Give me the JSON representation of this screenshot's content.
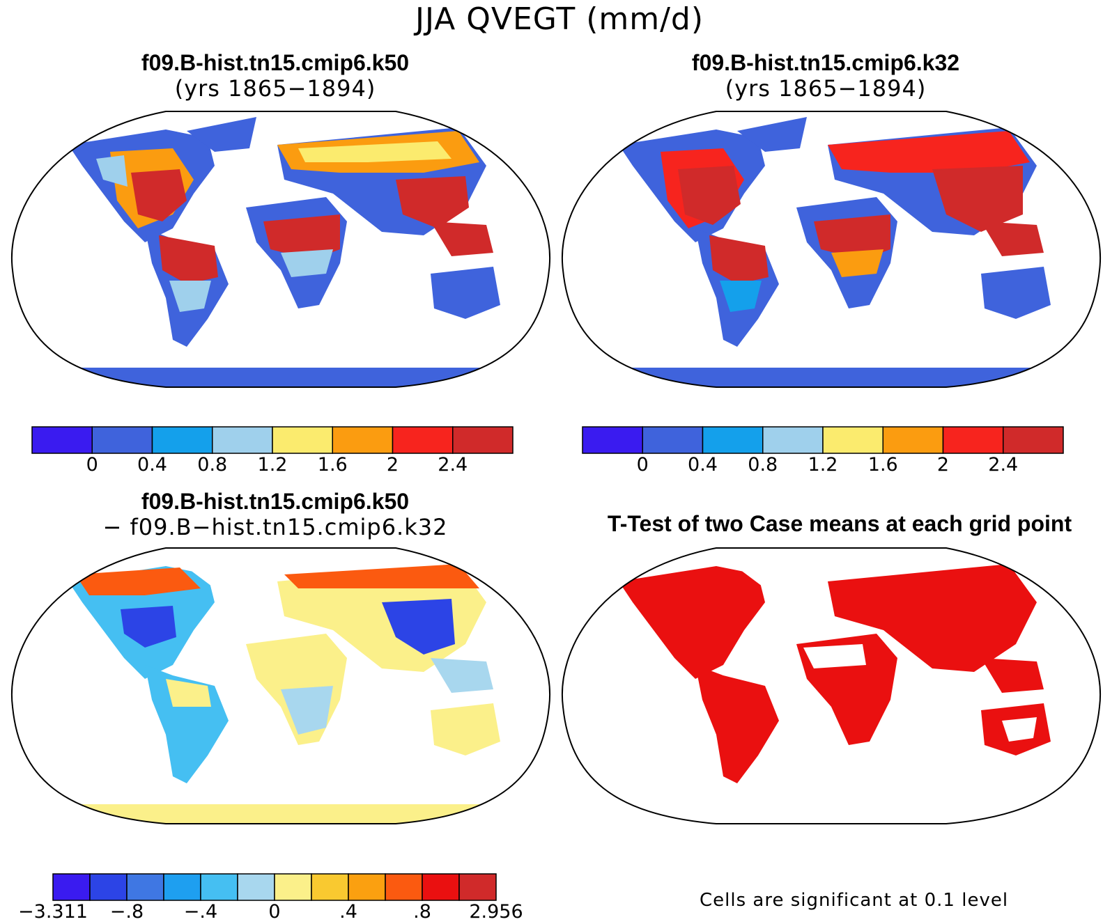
{
  "figure": {
    "title": "JJA QVEGT (mm/d)"
  },
  "panels": [
    {
      "id": "k50",
      "title_line1": "f09.B-hist.tn15.cmip6.k50",
      "title_line2": "(yrs 1865−1894)"
    },
    {
      "id": "k32",
      "title_line1": "f09.B-hist.tn15.cmip6.k32",
      "title_line2": "(yrs 1865−1894)"
    },
    {
      "id": "diff",
      "title_line1": "f09.B-hist.tn15.cmip6.k50",
      "title_line2": "− f09.B−hist.tn15.cmip6.k32"
    },
    {
      "id": "ttest",
      "title_line1": "T-Test of two Case means at each grid point",
      "footnote": "Cells are significant at 0.1 level"
    }
  ],
  "colorbars": {
    "abs": {
      "colors": [
        "#3a1bf0",
        "#3f63dc",
        "#14a0eb",
        "#9fd0ec",
        "#fbeb6e",
        "#fb9c10",
        "#f7241e",
        "#d02a2a"
      ],
      "labels": [
        "0",
        "0.4",
        "0.8",
        "1.2",
        "1.6",
        "2",
        "2.4"
      ]
    },
    "diff": {
      "colors": [
        "#3a1bf0",
        "#2c44e6",
        "#3f77e3",
        "#1e9ff0",
        "#45bff2",
        "#a8d7ee",
        "#fbf08a",
        "#f9c930",
        "#fba010",
        "#fb5a10",
        "#ea1010",
        "#d02a2a"
      ],
      "labels": [
        "−3.311",
        "−.8",
        "−.4",
        "0",
        ".4",
        ".8",
        "2.956"
      ]
    }
  },
  "chart_data": [
    {
      "type": "heatmap",
      "title": "f09.B-hist.tn15.cmip6.k50 (yrs 1865−1894)",
      "colorbar_levels": [
        0,
        0.4,
        0.8,
        1.2,
        1.6,
        2,
        2.4
      ]
    },
    {
      "type": "heatmap",
      "title": "f09.B-hist.tn15.cmip6.k32 (yrs 1865−1894)",
      "colorbar_levels": [
        0,
        0.4,
        0.8,
        1.2,
        1.6,
        2,
        2.4
      ]
    },
    {
      "type": "heatmap",
      "title": "f09.B-hist.tn15.cmip6.k50 − f09.B−hist.tn15.cmip6.k32",
      "colorbar_labels": [
        "−3.311",
        "−.8",
        "−.4",
        "0",
        ".4",
        ".8",
        "2.956"
      ]
    },
    {
      "type": "heatmap",
      "title": "T-Test of two Case means at each grid point",
      "significance_level": 0.1
    }
  ]
}
